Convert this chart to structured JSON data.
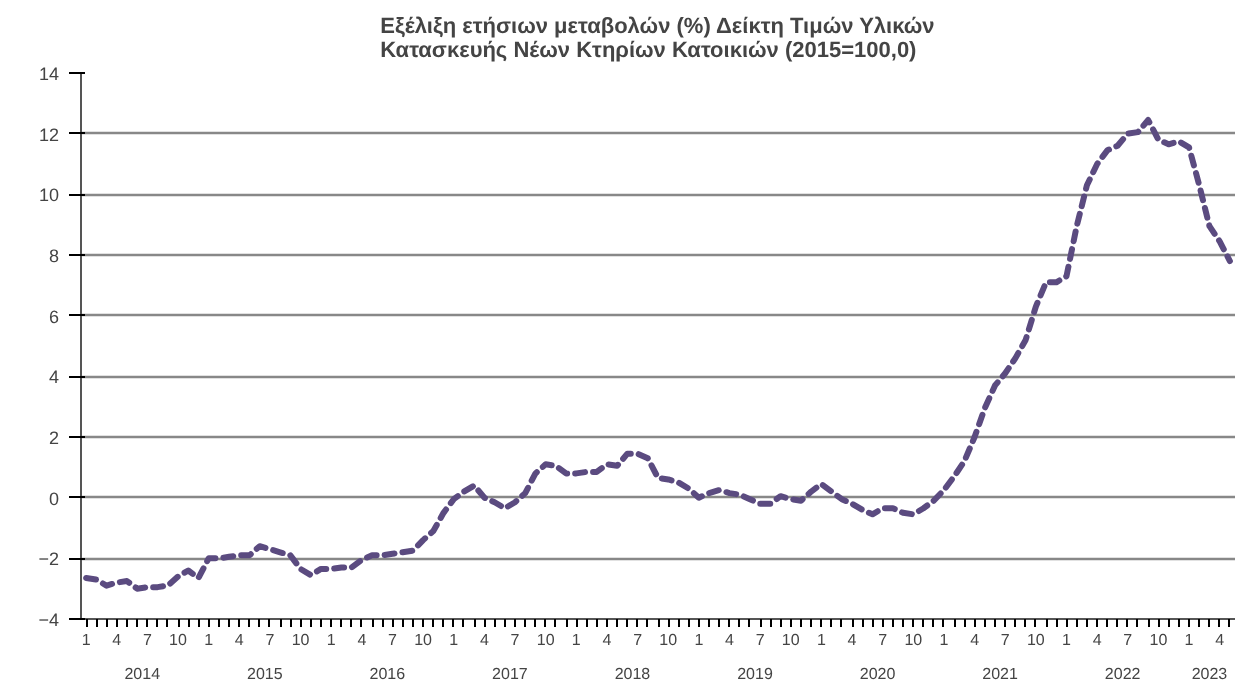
{
  "chart_data": {
    "type": "line",
    "title": "Εξέλιξη ετήσιων μεταβολών (%) Δείκτη Τιμών Υλικών\nΚατασκευής Νέων Κτηρίων Κατοικιών (2015=100,0)",
    "categories": [
      "1",
      null,
      null,
      "4",
      null,
      null,
      "7",
      null,
      null,
      "10",
      null,
      null,
      "1",
      null,
      null,
      "4",
      null,
      null,
      "7",
      null,
      null,
      "10",
      null,
      null,
      "1",
      null,
      null,
      "4",
      null,
      null,
      "7",
      null,
      null,
      "10",
      null,
      null,
      "1",
      null,
      null,
      "4",
      null,
      null,
      "7",
      null,
      null,
      "10",
      null,
      null,
      "1",
      null,
      null,
      "4",
      null,
      null,
      "7",
      null,
      null,
      "10",
      null,
      null,
      "1",
      null,
      null,
      "4",
      null,
      null,
      "7",
      null,
      null,
      "10",
      null,
      null,
      "1",
      null,
      null,
      "4",
      null,
      null,
      "7",
      null,
      null,
      "10",
      null,
      null,
      "1",
      null,
      null,
      "4",
      null,
      null,
      "7",
      null,
      null,
      "10",
      null,
      null,
      "1",
      null,
      null,
      "4",
      null,
      null,
      "7",
      null,
      null,
      "10",
      null,
      null,
      "1",
      null,
      null,
      "4",
      null
    ],
    "annotations": [
      "2014",
      "2015",
      "2016",
      "2017",
      "2018",
      "2019",
      "2020",
      "2021",
      "2022",
      "2023"
    ],
    "series": [
      {
        "color": "#5b4b80",
        "values": [
          -2.65,
          -2.7,
          -2.9,
          -2.8,
          -2.75,
          -3.0,
          -2.95,
          -2.95,
          -2.9,
          -2.6,
          -2.4,
          -2.65,
          -2.0,
          -2.0,
          -1.95,
          -1.9,
          -1.9,
          -1.6,
          -1.7,
          -1.8,
          -1.9,
          -2.35,
          -2.55,
          -2.35,
          -2.35,
          -2.3,
          -2.3,
          -2.05,
          -1.9,
          -1.9,
          -1.85,
          -1.8,
          -1.75,
          -1.4,
          -1.1,
          -0.5,
          -0.05,
          0.2,
          0.4,
          0.0,
          -0.15,
          -0.35,
          -0.15,
          0.15,
          0.8,
          1.1,
          1.05,
          0.8,
          0.8,
          0.85,
          0.85,
          1.1,
          1.05,
          1.45,
          1.45,
          1.3,
          0.65,
          0.6,
          0.5,
          0.3,
          0.0,
          0.15,
          0.25,
          0.15,
          0.1,
          -0.05,
          -0.2,
          -0.2,
          0.05,
          -0.05,
          -0.1,
          0.2,
          0.45,
          0.2,
          -0.05,
          -0.2,
          -0.4,
          -0.55,
          -0.35,
          -0.35,
          -0.5,
          -0.55,
          -0.35,
          -0.1,
          0.25,
          0.7,
          1.2,
          2.0,
          2.95,
          3.7,
          4.1,
          4.6,
          5.2,
          6.3,
          7.1,
          7.1,
          7.3,
          8.95,
          10.3,
          11.0,
          11.45,
          11.6,
          12.0,
          12.05,
          12.45,
          11.8,
          11.65,
          11.75,
          11.55,
          10.3,
          8.95,
          8.45,
          7.8
        ]
      }
    ],
    "ylim": [
      -4,
      14
    ],
    "yticks": [
      -4,
      -2,
      0,
      2,
      4,
      6,
      8,
      10,
      12,
      14
    ],
    "grid": "y",
    "line_style": "dashed"
  }
}
